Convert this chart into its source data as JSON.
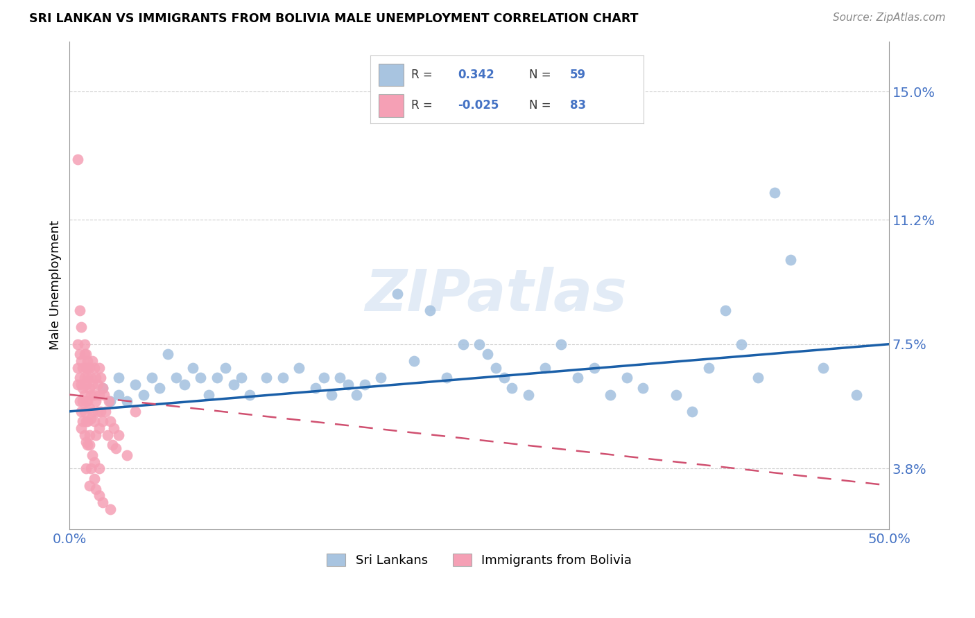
{
  "title": "SRI LANKAN VS IMMIGRANTS FROM BOLIVIA MALE UNEMPLOYMENT CORRELATION CHART",
  "source": "Source: ZipAtlas.com",
  "ylabel": "Male Unemployment",
  "xlim": [
    0.0,
    0.5
  ],
  "ylim": [
    0.02,
    0.165
  ],
  "yticks": [
    0.038,
    0.075,
    0.112,
    0.15
  ],
  "ytick_labels": [
    "3.8%",
    "7.5%",
    "11.2%",
    "15.0%"
  ],
  "xticks": [
    0.0,
    0.125,
    0.25,
    0.375,
    0.5
  ],
  "xtick_labels": [
    "0.0%",
    "",
    "",
    "",
    "50.0%"
  ],
  "sri_lankan_color": "#a8c4e0",
  "sri_lankan_edge": "#7aadd4",
  "bolivia_color": "#f5a0b5",
  "bolivia_edge": "#e87090",
  "sri_line_color": "#1a5fa8",
  "bol_line_color": "#d05070",
  "watermark": "ZIPatlas",
  "sri_lankan_R": "0.342",
  "sri_lankan_N": "59",
  "bolivia_R": "-0.025",
  "bolivia_N": "83",
  "sri_line_x": [
    0.0,
    0.5
  ],
  "sri_line_y": [
    0.055,
    0.075
  ],
  "bol_line_x": [
    0.0,
    0.5
  ],
  "bol_line_y": [
    0.06,
    0.033
  ],
  "sri_lankan_scatter": [
    [
      0.02,
      0.062
    ],
    [
      0.025,
      0.058
    ],
    [
      0.03,
      0.06
    ],
    [
      0.03,
      0.065
    ],
    [
      0.035,
      0.058
    ],
    [
      0.04,
      0.063
    ],
    [
      0.045,
      0.06
    ],
    [
      0.05,
      0.065
    ],
    [
      0.055,
      0.062
    ],
    [
      0.06,
      0.072
    ],
    [
      0.065,
      0.065
    ],
    [
      0.07,
      0.063
    ],
    [
      0.075,
      0.068
    ],
    [
      0.08,
      0.065
    ],
    [
      0.085,
      0.06
    ],
    [
      0.09,
      0.065
    ],
    [
      0.095,
      0.068
    ],
    [
      0.1,
      0.063
    ],
    [
      0.105,
      0.065
    ],
    [
      0.11,
      0.06
    ],
    [
      0.12,
      0.065
    ],
    [
      0.13,
      0.065
    ],
    [
      0.14,
      0.068
    ],
    [
      0.15,
      0.062
    ],
    [
      0.155,
      0.065
    ],
    [
      0.16,
      0.06
    ],
    [
      0.165,
      0.065
    ],
    [
      0.17,
      0.063
    ],
    [
      0.175,
      0.06
    ],
    [
      0.18,
      0.063
    ],
    [
      0.19,
      0.065
    ],
    [
      0.2,
      0.09
    ],
    [
      0.21,
      0.07
    ],
    [
      0.22,
      0.085
    ],
    [
      0.23,
      0.065
    ],
    [
      0.24,
      0.075
    ],
    [
      0.25,
      0.075
    ],
    [
      0.255,
      0.072
    ],
    [
      0.26,
      0.068
    ],
    [
      0.265,
      0.065
    ],
    [
      0.27,
      0.062
    ],
    [
      0.28,
      0.06
    ],
    [
      0.29,
      0.068
    ],
    [
      0.3,
      0.075
    ],
    [
      0.31,
      0.065
    ],
    [
      0.32,
      0.068
    ],
    [
      0.33,
      0.06
    ],
    [
      0.34,
      0.065
    ],
    [
      0.35,
      0.062
    ],
    [
      0.37,
      0.06
    ],
    [
      0.38,
      0.055
    ],
    [
      0.39,
      0.068
    ],
    [
      0.4,
      0.085
    ],
    [
      0.41,
      0.075
    ],
    [
      0.42,
      0.065
    ],
    [
      0.43,
      0.12
    ],
    [
      0.44,
      0.1
    ],
    [
      0.46,
      0.068
    ],
    [
      0.48,
      0.06
    ]
  ],
  "bolivia_scatter": [
    [
      0.005,
      0.075
    ],
    [
      0.005,
      0.068
    ],
    [
      0.005,
      0.063
    ],
    [
      0.006,
      0.072
    ],
    [
      0.006,
      0.065
    ],
    [
      0.006,
      0.058
    ],
    [
      0.007,
      0.07
    ],
    [
      0.007,
      0.063
    ],
    [
      0.007,
      0.055
    ],
    [
      0.007,
      0.05
    ],
    [
      0.008,
      0.068
    ],
    [
      0.008,
      0.062
    ],
    [
      0.008,
      0.058
    ],
    [
      0.008,
      0.052
    ],
    [
      0.009,
      0.072
    ],
    [
      0.009,
      0.065
    ],
    [
      0.009,
      0.06
    ],
    [
      0.009,
      0.055
    ],
    [
      0.009,
      0.048
    ],
    [
      0.01,
      0.068
    ],
    [
      0.01,
      0.063
    ],
    [
      0.01,
      0.058
    ],
    [
      0.01,
      0.052
    ],
    [
      0.01,
      0.046
    ],
    [
      0.011,
      0.07
    ],
    [
      0.011,
      0.065
    ],
    [
      0.011,
      0.058
    ],
    [
      0.011,
      0.052
    ],
    [
      0.011,
      0.045
    ],
    [
      0.012,
      0.068
    ],
    [
      0.012,
      0.062
    ],
    [
      0.012,
      0.056
    ],
    [
      0.012,
      0.048
    ],
    [
      0.013,
      0.065
    ],
    [
      0.013,
      0.06
    ],
    [
      0.013,
      0.053
    ],
    [
      0.014,
      0.07
    ],
    [
      0.014,
      0.063
    ],
    [
      0.014,
      0.055
    ],
    [
      0.014,
      0.042
    ],
    [
      0.015,
      0.068
    ],
    [
      0.015,
      0.06
    ],
    [
      0.015,
      0.052
    ],
    [
      0.015,
      0.04
    ],
    [
      0.016,
      0.065
    ],
    [
      0.016,
      0.058
    ],
    [
      0.016,
      0.048
    ],
    [
      0.017,
      0.063
    ],
    [
      0.017,
      0.055
    ],
    [
      0.018,
      0.068
    ],
    [
      0.018,
      0.06
    ],
    [
      0.018,
      0.05
    ],
    [
      0.018,
      0.038
    ],
    [
      0.019,
      0.065
    ],
    [
      0.019,
      0.055
    ],
    [
      0.02,
      0.062
    ],
    [
      0.02,
      0.052
    ],
    [
      0.021,
      0.06
    ],
    [
      0.022,
      0.055
    ],
    [
      0.023,
      0.048
    ],
    [
      0.024,
      0.058
    ],
    [
      0.025,
      0.052
    ],
    [
      0.026,
      0.045
    ],
    [
      0.027,
      0.05
    ],
    [
      0.028,
      0.044
    ],
    [
      0.03,
      0.048
    ],
    [
      0.035,
      0.042
    ],
    [
      0.04,
      0.055
    ],
    [
      0.005,
      0.13
    ],
    [
      0.006,
      0.085
    ],
    [
      0.007,
      0.08
    ],
    [
      0.009,
      0.075
    ],
    [
      0.01,
      0.072
    ],
    [
      0.011,
      0.068
    ],
    [
      0.012,
      0.045
    ],
    [
      0.013,
      0.038
    ],
    [
      0.015,
      0.035
    ],
    [
      0.016,
      0.032
    ],
    [
      0.018,
      0.03
    ],
    [
      0.02,
      0.028
    ],
    [
      0.025,
      0.026
    ],
    [
      0.01,
      0.038
    ],
    [
      0.012,
      0.033
    ]
  ]
}
